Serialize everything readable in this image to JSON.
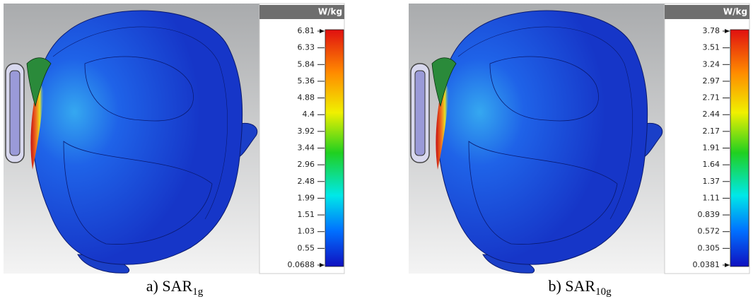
{
  "panels": [
    {
      "unit": "W/kg",
      "ticks": [
        "6.81",
        "6.33",
        "5.84",
        "5.36",
        "4.88",
        "4.4",
        "3.92",
        "3.44",
        "2.96",
        "2.48",
        "1.99",
        "1.51",
        "1.03",
        "0.55",
        "0.0688"
      ],
      "caption": {
        "prefix": "a) SAR",
        "subscript": "1g"
      }
    },
    {
      "unit": "W/kg",
      "ticks": [
        "3.78",
        "3.51",
        "3.24",
        "2.97",
        "2.71",
        "2.44",
        "2.17",
        "1.91",
        "1.64",
        "1.37",
        "1.11",
        "0.839",
        "0.572",
        "0.305",
        "0.0381"
      ],
      "caption": {
        "prefix": "b) SAR",
        "subscript": "10g"
      }
    }
  ]
}
